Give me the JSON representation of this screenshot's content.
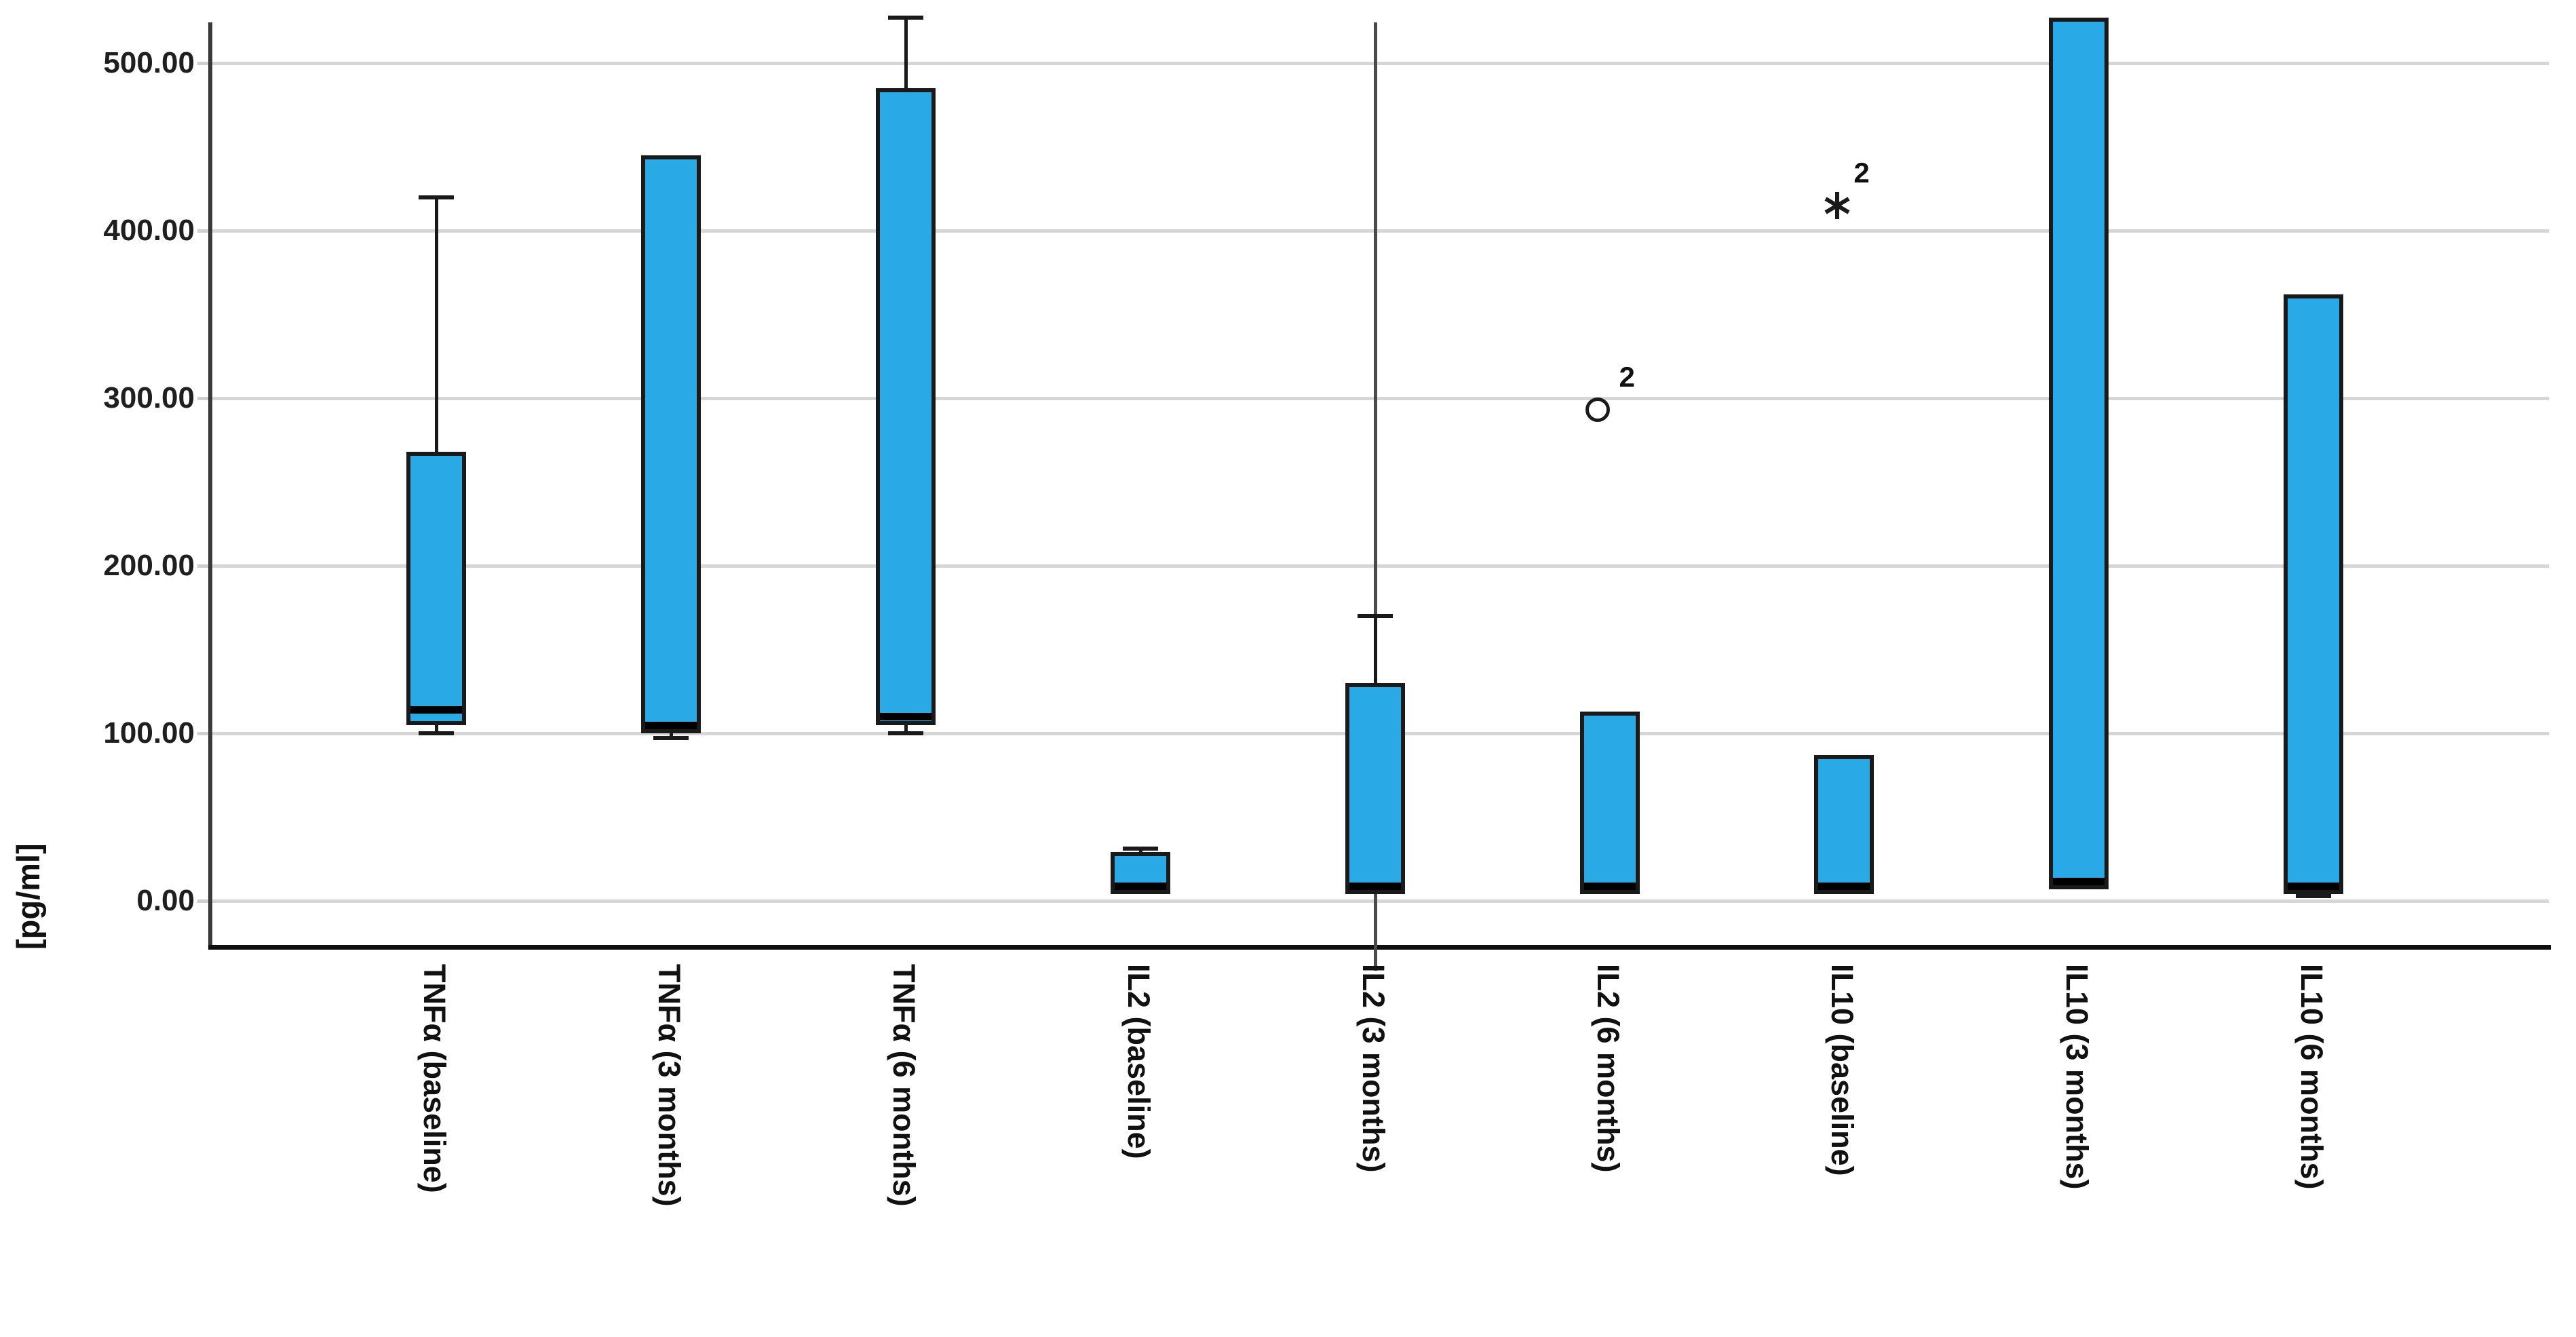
{
  "chart_data": {
    "type": "boxplot",
    "title": "",
    "ylabel": "[pg/ml]",
    "xlabel": "",
    "ylim": [
      0,
      530
    ],
    "grid": true,
    "legend_position": "none",
    "colors": {
      "box_fill": "#29a9e6",
      "box_border": "#1a1a1a",
      "gridline": "#d6d6d6",
      "axis": "#0f0f0f",
      "reference_line": "#4a4a4a"
    },
    "yticks": [
      {
        "value": 0,
        "label": "0.00"
      },
      {
        "value": 100,
        "label": "100.00"
      },
      {
        "value": 200,
        "label": "200.00"
      },
      {
        "value": 300,
        "label": "300.00"
      },
      {
        "value": 400,
        "label": "400.00"
      },
      {
        "value": 500,
        "label": "500.00"
      }
    ],
    "categories": [
      "TNFα (baseline)",
      "TNFα (3 months)",
      "TNFα (6 months)",
      "IL2 (baseline)",
      "IL2 (3 months)",
      "IL2 (6 months)",
      "IL10 (baseline)",
      "IL10 (3 months)",
      "IL10 (6 months)"
    ],
    "series": [
      {
        "label": "TNFα (baseline)",
        "q1": 105,
        "median": 114,
        "q3": 268,
        "whisker_low": 100,
        "whisker_high": 420,
        "outliers": [],
        "full_height_reference_line": false
      },
      {
        "label": "TNFα (3 months)",
        "q1": 100,
        "median": 100,
        "q3": 445,
        "whisker_low": 97,
        "whisker_high": null,
        "outliers": [],
        "full_height_reference_line": false
      },
      {
        "label": "TNFα (6 months)",
        "q1": 105,
        "median": 110,
        "q3": 485,
        "whisker_low": 100,
        "whisker_high": 527,
        "outliers": [],
        "full_height_reference_line": false
      },
      {
        "label": "IL2 (baseline)",
        "q1": 4,
        "median": 5,
        "q3": 29,
        "whisker_low": null,
        "whisker_high": 31,
        "outliers": [],
        "full_height_reference_line": false
      },
      {
        "label": "IL2 (3 months)",
        "q1": 4,
        "median": 5,
        "q3": 130,
        "whisker_low": null,
        "whisker_high": 170,
        "outliers": [],
        "full_height_reference_line": true
      },
      {
        "label": "IL2 (6 months)",
        "q1": 4,
        "median": 5,
        "q3": 113,
        "whisker_low": null,
        "whisker_high": null,
        "outliers": [
          {
            "value": 293,
            "symbol": "circle",
            "label": "2"
          }
        ],
        "full_height_reference_line": false
      },
      {
        "label": "IL10 (baseline)",
        "q1": 4,
        "median": 5,
        "q3": 87,
        "whisker_low": null,
        "whisker_high": null,
        "outliers": [
          {
            "value": 415,
            "symbol": "asterisk",
            "label": "2"
          }
        ],
        "full_height_reference_line": false
      },
      {
        "label": "IL10 (3 months)",
        "q1": 7,
        "median": 7,
        "q3": 527,
        "whisker_low": null,
        "whisker_high": null,
        "outliers": [],
        "full_height_reference_line": false
      },
      {
        "label": "IL10 (6 months)",
        "q1": 4,
        "median": 5,
        "q3": 362,
        "whisker_low": 3,
        "whisker_high": null,
        "outliers": [],
        "full_height_reference_line": false
      }
    ]
  }
}
